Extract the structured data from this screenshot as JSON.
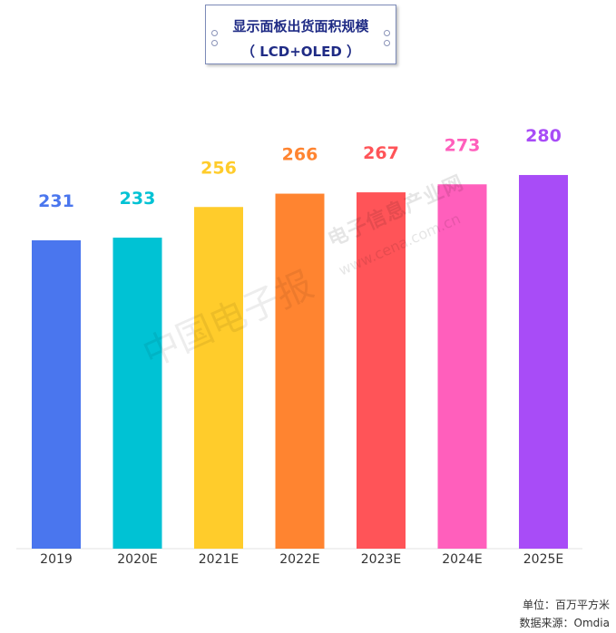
{
  "title": {
    "line1": "显示面板出货面积规模",
    "line2": "（ LCD+OLED ）"
  },
  "watermark": {
    "cn": "电子信息产业网",
    "url": "www.cena.com.cn",
    "script": "中国电子报"
  },
  "footer": {
    "unit": "单位：百万平方米",
    "source": "数据来源：Omdia"
  },
  "colors": {
    "2019": "#4a76ee",
    "2020E": "#00c2d4",
    "2021E": "#ffcc2b",
    "2022E": "#ff8430",
    "2023E": "#ff5458",
    "2024E": "#ff5fbc",
    "2025E": "#a84cf7"
  },
  "chart_data": {
    "type": "bar",
    "title": "显示面板出货面积规模（LCD+OLED）",
    "categories": [
      "2019",
      "2020E",
      "2021E",
      "2022E",
      "2023E",
      "2024E",
      "2025E"
    ],
    "values": [
      231,
      233,
      256,
      266,
      267,
      273,
      280
    ],
    "unit": "单位：百万平方米",
    "ylim": [
      0,
      280
    ],
    "grid": false,
    "legend": "none"
  }
}
